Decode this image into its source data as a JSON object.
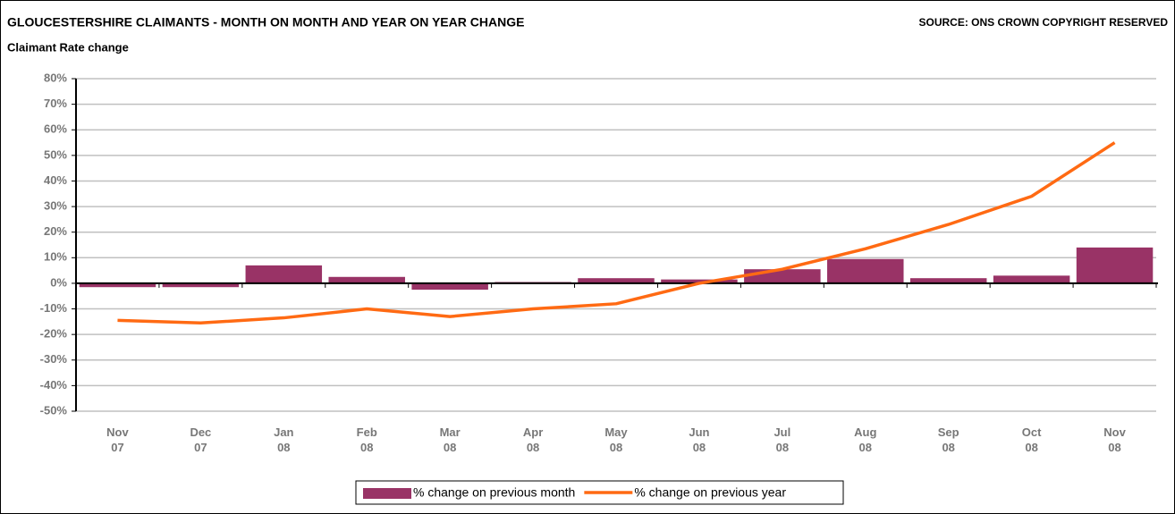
{
  "chart_data": {
    "type": "bar_line",
    "title": "GLOUCESTERSHIRE CLAIMANTS - MONTH ON MONTH AND YEAR ON YEAR CHANGE",
    "source": "SOURCE: ONS CROWN COPYRIGHT RESERVED",
    "subtitle": "Claimant Rate change",
    "categories": [
      "Nov\n07",
      "Dec\n07",
      "Jan\n08",
      "Feb\n08",
      "Mar\n08",
      "Apr\n08",
      "May\n08",
      "Jun\n08",
      "Jul\n08",
      "Aug\n08",
      "Sep\n08",
      "Oct\n08",
      "Nov\n08"
    ],
    "series": [
      {
        "name": "% change on previous month",
        "type": "bar",
        "color": "#993366",
        "values": [
          -1.5,
          -1.5,
          7,
          2.5,
          -2.5,
          0.5,
          2,
          1.5,
          5.5,
          9.5,
          2,
          3,
          14
        ]
      },
      {
        "name": "% change on previous year",
        "type": "line",
        "color": "#ff6a13",
        "values": [
          -14.5,
          -15.5,
          -13.5,
          -10,
          -13,
          -10,
          -8,
          0,
          5.5,
          13.5,
          23,
          34,
          55
        ]
      }
    ],
    "ylim": [
      -50,
      80
    ],
    "yticks": [
      {
        "value": -50,
        "label": "-50%"
      },
      {
        "value": -40,
        "label": "-40%"
      },
      {
        "value": -30,
        "label": "-30%"
      },
      {
        "value": -20,
        "label": "-20%"
      },
      {
        "value": -10,
        "label": "-10%"
      },
      {
        "value": 0,
        "label": "0%"
      },
      {
        "value": 10,
        "label": "10%"
      },
      {
        "value": 20,
        "label": "20%"
      },
      {
        "value": 30,
        "label": "30%"
      },
      {
        "value": 40,
        "label": "40%"
      },
      {
        "value": 50,
        "label": "50%"
      },
      {
        "value": 60,
        "label": "60%"
      },
      {
        "value": 70,
        "label": "70%"
      },
      {
        "value": 80,
        "label": "80%"
      }
    ],
    "grid": true,
    "legend": "bottom"
  }
}
